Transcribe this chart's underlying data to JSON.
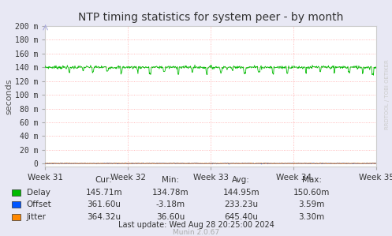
{
  "title": "NTP timing statistics for system peer - by month",
  "ylabel": "seconds",
  "bg_color": "#e8e8f4",
  "plot_bg_color": "#ffffff",
  "grid_color": "#ffaaaa",
  "border_color": "#aaaaaa",
  "x_tick_labels": [
    "Week 31",
    "Week 32",
    "Week 33",
    "Week 34",
    "Week 35"
  ],
  "y_tick_labels": [
    "0",
    "20 m",
    "40 m",
    "60 m",
    "80 m",
    "100 m",
    "120 m",
    "140 m",
    "160 m",
    "180 m",
    "200 m"
  ],
  "y_max": 0.2,
  "y_min": -0.004,
  "delay_color": "#00bb00",
  "offset_color": "#0055ff",
  "jitter_color": "#ff8800",
  "watermark": "RRDTOOL / TOBI OETIKER",
  "munin_label": "Munin 2.0.67",
  "legend": [
    {
      "label": "Delay",
      "color": "#00bb00"
    },
    {
      "label": "Offset",
      "color": "#0055ff"
    },
    {
      "label": "Jitter",
      "color": "#ff8800"
    }
  ],
  "stats_headers": [
    "Cur:",
    "Min:",
    "Avg:",
    "Max:"
  ],
  "stats_rows": [
    [
      "Delay",
      "145.71m",
      "134.78m",
      "144.95m",
      "150.60m"
    ],
    [
      "Offset",
      "361.60u",
      "-3.18m",
      "233.23u",
      "3.59m"
    ],
    [
      "Jitter",
      "364.32u",
      "36.60u",
      "645.40u",
      "3.30m"
    ]
  ],
  "last_update": "Last update: Wed Aug 28 20:25:00 2024"
}
